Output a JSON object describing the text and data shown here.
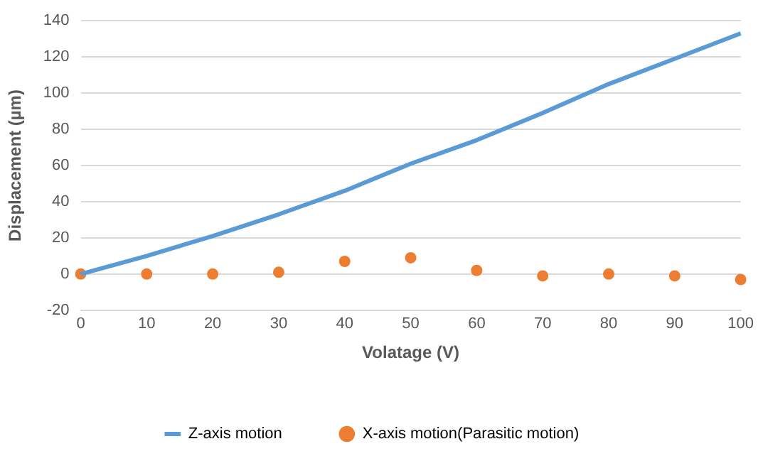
{
  "chart_data": {
    "type": "line",
    "xlabel": "Volatage (V)",
    "ylabel": "Displacement (µm)",
    "categories": [
      "0",
      "10",
      "20",
      "30",
      "40",
      "50",
      "60",
      "70",
      "80",
      "90",
      "100"
    ],
    "series": [
      {
        "name": "Z-axis motion",
        "color": "#5b9bd5",
        "marker": "none",
        "values": [
          0,
          10,
          21,
          33,
          46,
          61,
          74,
          89,
          105,
          119,
          133
        ]
      },
      {
        "name": "X-axis motion(Parasitic motion)",
        "type": "scatter",
        "color": "#ed7d31",
        "marker": "circle",
        "values": [
          0,
          0,
          0,
          1,
          7,
          9,
          2,
          -1,
          0,
          -1,
          -3
        ]
      }
    ],
    "ylim": [
      -20,
      140
    ],
    "yticks": [
      -20,
      0,
      20,
      40,
      60,
      80,
      100,
      120,
      140
    ],
    "grid": "y",
    "legend": "bottom"
  }
}
